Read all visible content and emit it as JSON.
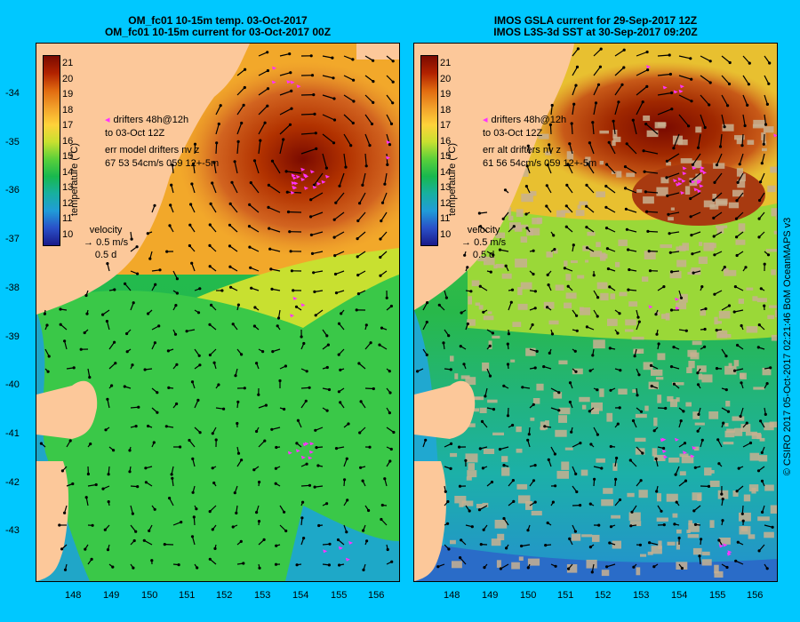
{
  "panels": [
    {
      "title_line1": "OM_fc01 10-15m temp. 03-Oct-2017",
      "title_line2": "OM_fc01 10-15m current for 03-Oct-2017 00Z",
      "legend_drifters": "drifters 48h@12h",
      "legend_to": "to 03-Oct 12Z",
      "legend_err": "err model drifters nv z",
      "legend_stats": "67 53 54cm/s 059 12+-5m"
    },
    {
      "title_line1": "IMOS GSLA current for 29-Sep-2017 12Z",
      "title_line2": "IMOS L3S-3d SST at 30-Sep-2017 09:20Z",
      "legend_drifters": "drifters 48h@12h",
      "legend_to": "to 03-Oct 12Z",
      "legend_err": "err alt drifters nv z",
      "legend_stats": "61 56 54cm/s 059 12+-5m"
    }
  ],
  "colorbar": {
    "label": "temperature (°C)",
    "ticks": [
      "21",
      "20",
      "19",
      "18",
      "17",
      "16",
      "15",
      "14",
      "13",
      "12",
      "11",
      "10"
    ],
    "colors": [
      "#7a0a00",
      "#b22200",
      "#e06a10",
      "#f2a02a",
      "#ffd23a",
      "#c8e030",
      "#5ad03a",
      "#18b84e",
      "#18b0a0",
      "#209cd8",
      "#2a50c8",
      "#1a1a8a"
    ]
  },
  "velocity_legend": {
    "title": "velocity",
    "speed": "0.5 m/s",
    "duration": "0.5 d"
  },
  "y_ticks": [
    "-34",
    "-35",
    "-36",
    "-37",
    "-38",
    "-39",
    "-40",
    "-41",
    "-42",
    "-43"
  ],
  "x_ticks": [
    "148",
    "149",
    "150",
    "151",
    "152",
    "153",
    "154",
    "155",
    "156"
  ],
  "credit": "© CSIRO 2017   05-Oct-2017 02:21:46 BoM OceanMAPS v3",
  "colors": {
    "background": "#00c8ff",
    "land": "#fcc89a",
    "drifter": "#ff33ff"
  }
}
